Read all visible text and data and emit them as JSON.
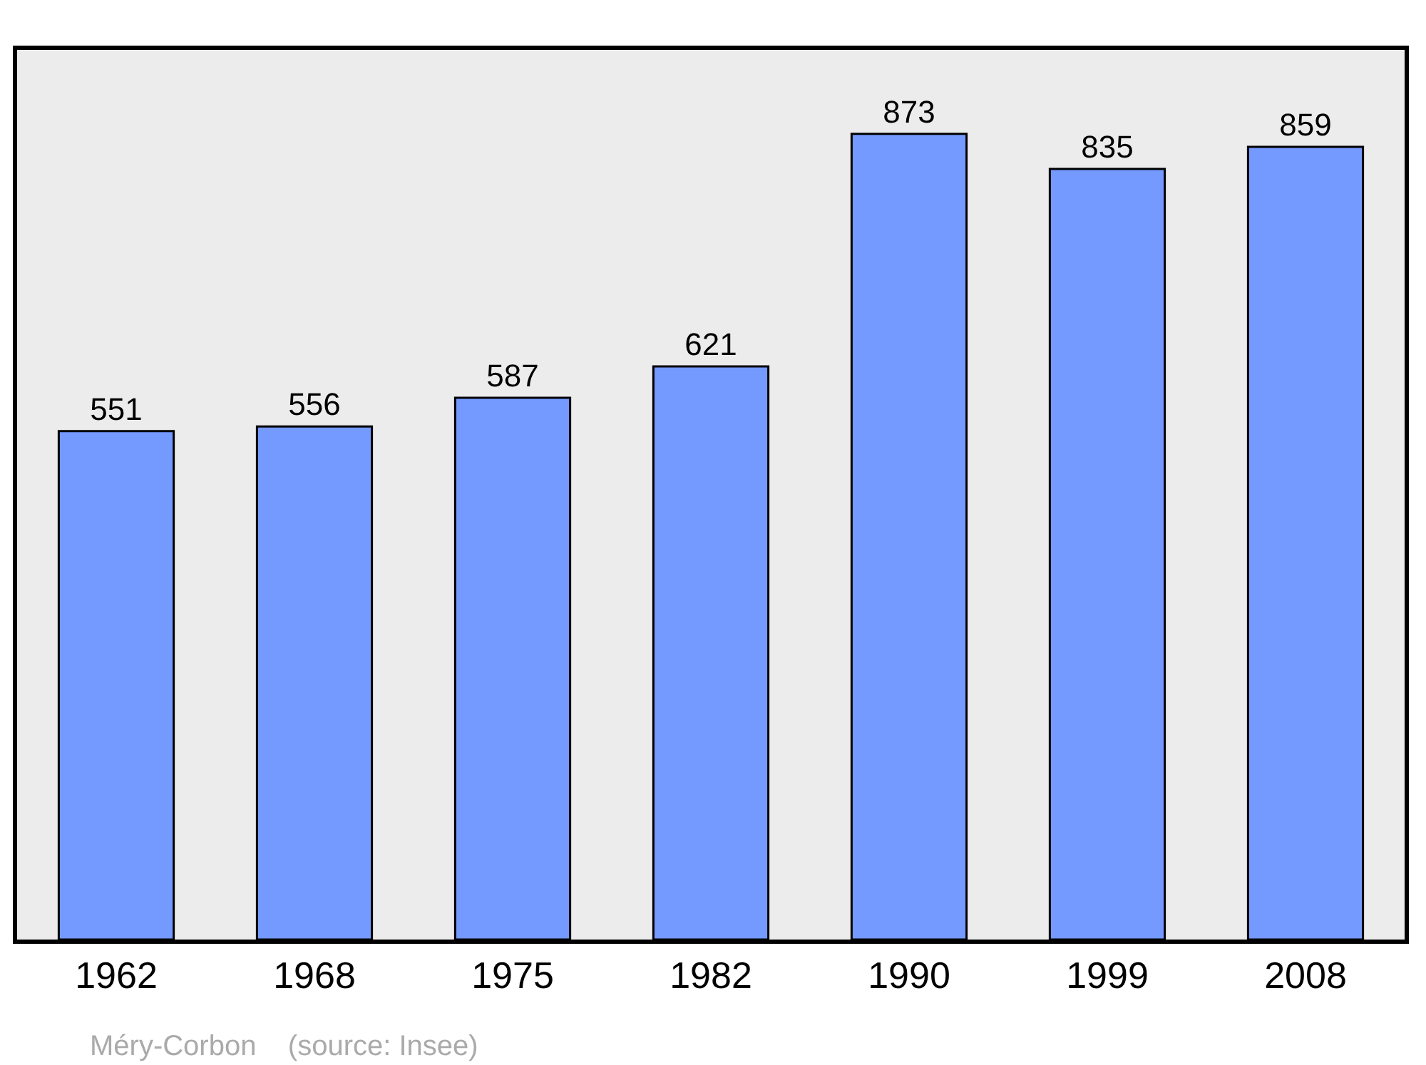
{
  "chart_data": {
    "type": "bar",
    "categories": [
      "1962",
      "1968",
      "1975",
      "1982",
      "1990",
      "1999",
      "2008"
    ],
    "values": [
      551,
      556,
      587,
      621,
      873,
      835,
      859
    ],
    "color": "#7499ff",
    "ylim": [
      0,
      964
    ],
    "tick_labels": "x",
    "data_labels": true,
    "grid": false,
    "legend": false,
    "annotations": [
      "Méry-Corbon    (source: Insee)"
    ]
  }
}
